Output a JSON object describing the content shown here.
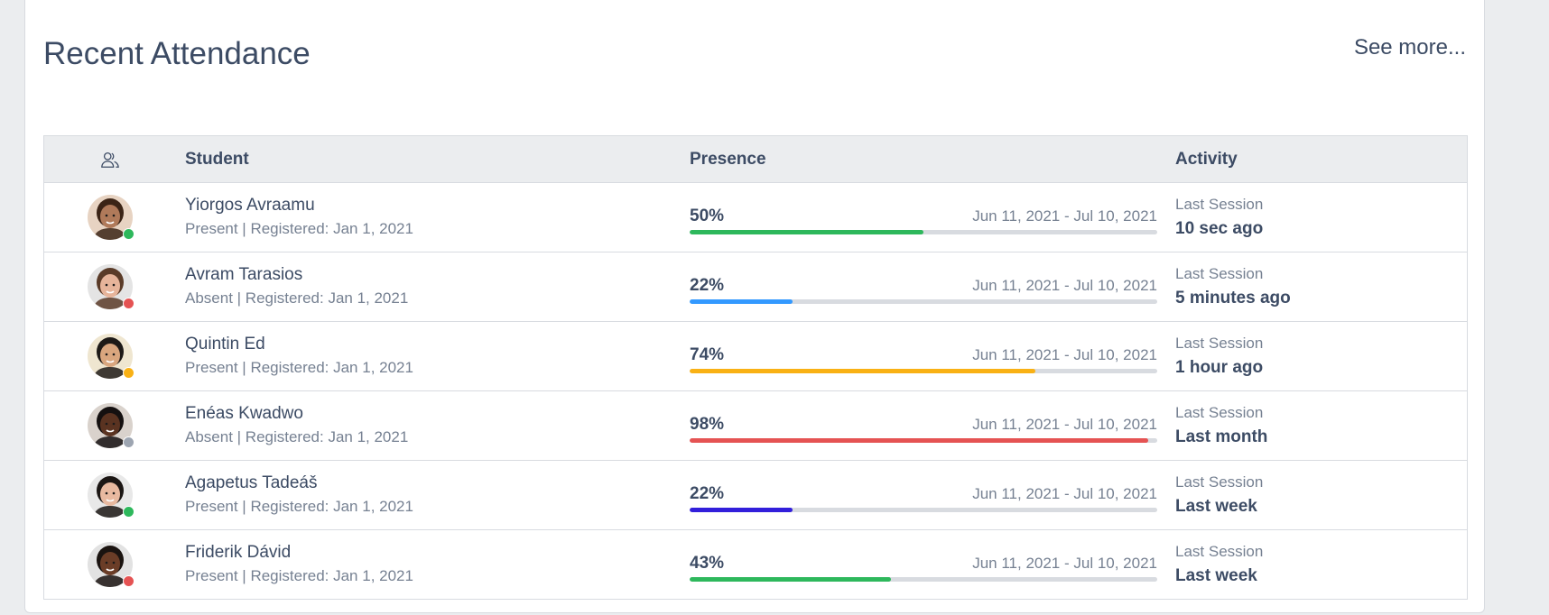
{
  "card": {
    "title": "Recent Attendance",
    "see_more": "See more..."
  },
  "table": {
    "headers": {
      "icon": "people-icon",
      "student": "Student",
      "presence": "Presence",
      "activity": "Activity"
    },
    "rows": [
      {
        "name": "Yiorgos Avraamu",
        "subtitle": "Present | Registered: Jan 1, 2021",
        "status_color": "#2eb85c",
        "presence_pct": "50%",
        "presence_value": 0.5,
        "range": "Jun 11, 2021 - Jul 10, 2021",
        "bar_color": "#2eb85c",
        "activity_label": "Last Session",
        "activity_value": "10 sec ago",
        "avatar": {
          "skin": "#b07a5a",
          "hair": "#3b2416",
          "bg": "#e7d3c2"
        }
      },
      {
        "name": "Avram Tarasios",
        "subtitle": "Absent | Registered: Jan 1, 2021",
        "status_color": "#e55353",
        "presence_pct": "22%",
        "presence_value": 0.22,
        "range": "Jun 11, 2021 - Jul 10, 2021",
        "bar_color": "#3399ff",
        "activity_label": "Last Session",
        "activity_value": "5 minutes ago",
        "avatar": {
          "skin": "#e6b49a",
          "hair": "#5a3b28",
          "bg": "#e4e4e4"
        }
      },
      {
        "name": "Quintin Ed",
        "subtitle": "Present | Registered: Jan 1, 2021",
        "status_color": "#f9b115",
        "presence_pct": "74%",
        "presence_value": 0.74,
        "range": "Jun 11, 2021 - Jul 10, 2021",
        "bar_color": "#f9b115",
        "activity_label": "Last Session",
        "activity_value": "1 hour ago",
        "avatar": {
          "skin": "#d9a67e",
          "hair": "#1e1a17",
          "bg": "#efe6d0"
        }
      },
      {
        "name": "Enéas Kwadwo",
        "subtitle": "Absent | Registered: Jan 1, 2021",
        "status_color": "#9da5b1",
        "presence_pct": "98%",
        "presence_value": 0.98,
        "range": "Jun 11, 2021 - Jul 10, 2021",
        "bar_color": "#e55353",
        "activity_label": "Last Session",
        "activity_value": "Last month",
        "avatar": {
          "skin": "#5a3321",
          "hair": "#141010",
          "bg": "#d9d2cc"
        }
      },
      {
        "name": "Agapetus Tadeáš",
        "subtitle": "Present | Registered: Jan 1, 2021",
        "status_color": "#2eb85c",
        "presence_pct": "22%",
        "presence_value": 0.22,
        "range": "Jun 11, 2021 - Jul 10, 2021",
        "bar_color": "#321fdb",
        "activity_label": "Last Session",
        "activity_value": "Last week",
        "avatar": {
          "skin": "#e8b9a0",
          "hair": "#1b1614",
          "bg": "#e8e8e8"
        }
      },
      {
        "name": "Friderik Dávid",
        "subtitle": "Present | Registered: Jan 1, 2021",
        "status_color": "#e55353",
        "presence_pct": "43%",
        "presence_value": 0.43,
        "range": "Jun 11, 2021 - Jul 10, 2021",
        "bar_color": "#2eb85c",
        "activity_label": "Last Session",
        "activity_value": "Last week",
        "avatar": {
          "skin": "#6b3d27",
          "hair": "#1a1310",
          "bg": "#e2e2e2"
        }
      }
    ]
  }
}
